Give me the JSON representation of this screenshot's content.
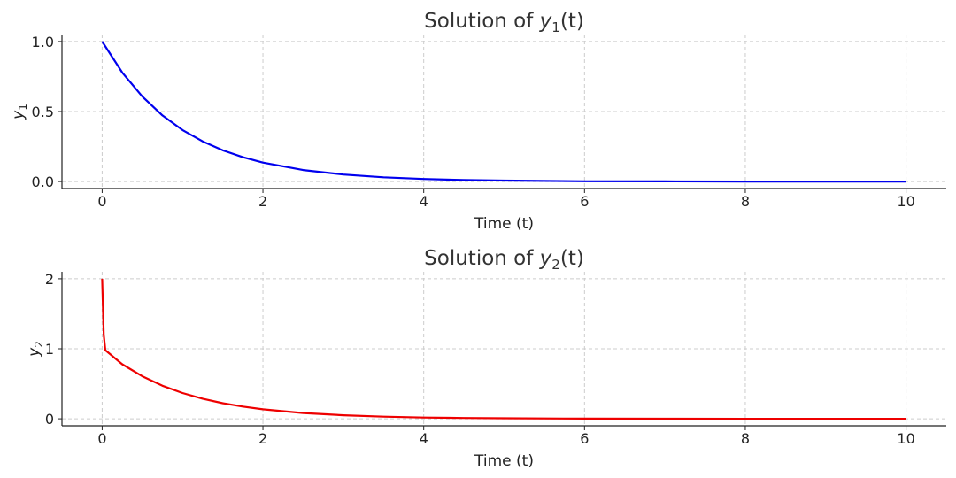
{
  "chart_data": [
    {
      "type": "line",
      "title_prefix": "Solution of ",
      "title_var": "y",
      "title_sub": "1",
      "title_suffix": "(t)",
      "xlabel": "Time (t)",
      "ylabel_var": "y",
      "ylabel_sub": "1",
      "xlim": [
        -0.5,
        10.5
      ],
      "ylim": [
        -0.05,
        1.05
      ],
      "xticks": [
        0,
        2,
        4,
        6,
        8,
        10
      ],
      "xtick_labels": [
        "0",
        "2",
        "4",
        "6",
        "8",
        "10"
      ],
      "yticks": [
        0.0,
        0.5,
        1.0
      ],
      "ytick_labels": [
        "0.0",
        "0.5",
        "1.0"
      ],
      "grid": true,
      "series": [
        {
          "color": "#0000ee",
          "x": [
            0,
            0.25,
            0.5,
            0.75,
            1,
            1.25,
            1.5,
            1.75,
            2,
            2.5,
            3,
            3.5,
            4,
            4.5,
            5,
            6,
            7,
            8,
            9,
            10
          ],
          "y": [
            1.0,
            0.779,
            0.607,
            0.472,
            0.368,
            0.287,
            0.223,
            0.174,
            0.135,
            0.082,
            0.05,
            0.03,
            0.018,
            0.011,
            0.007,
            0.002,
            0.001,
            0.0,
            0.0,
            0.0
          ]
        }
      ]
    },
    {
      "type": "line",
      "title_prefix": "Solution of ",
      "title_var": "y",
      "title_sub": "2",
      "title_suffix": "(t)",
      "xlabel": "Time (t)",
      "ylabel_var": "y",
      "ylabel_sub": "2",
      "xlim": [
        -0.5,
        10.5
      ],
      "ylim": [
        -0.1,
        2.1
      ],
      "xticks": [
        0,
        2,
        4,
        6,
        8,
        10
      ],
      "xtick_labels": [
        "0",
        "2",
        "4",
        "6",
        "8",
        "10"
      ],
      "yticks": [
        0,
        1,
        2
      ],
      "ytick_labels": [
        "0",
        "1",
        "2"
      ],
      "grid": true,
      "series": [
        {
          "color": "#ee0000",
          "x": [
            0,
            0.01,
            0.02,
            0.04,
            0.25,
            0.5,
            0.75,
            1,
            1.25,
            1.5,
            1.75,
            2,
            2.5,
            3,
            3.5,
            4,
            4.5,
            5,
            6,
            7,
            8,
            9,
            10
          ],
          "y": [
            2.0,
            1.6,
            1.2,
            0.98,
            0.779,
            0.607,
            0.472,
            0.368,
            0.287,
            0.223,
            0.174,
            0.135,
            0.082,
            0.05,
            0.03,
            0.018,
            0.011,
            0.007,
            0.002,
            0.001,
            0.0,
            0.0,
            0.0
          ]
        }
      ]
    }
  ]
}
